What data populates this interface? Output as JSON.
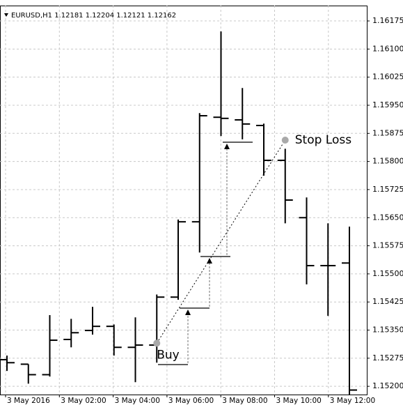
{
  "chart_data": {
    "type": "ohlc",
    "title": "EURUSD,H1  1.12181 1.12204 1.12121 1.12162",
    "open": [
      1.15271,
      1.15259,
      1.15231,
      1.15325,
      1.15349,
      1.1536,
      1.15304,
      1.1531,
      1.15438,
      1.15639,
      1.15918,
      1.15911,
      1.15896,
      1.15803,
      1.1565,
      1.15522,
      1.15529
    ],
    "high": [
      1.15282,
      1.15259,
      1.1539,
      1.1538,
      1.15412,
      1.15365,
      1.15384,
      1.15445,
      1.15645,
      1.15929,
      1.16147,
      1.15996,
      1.15901,
      1.15834,
      1.15704,
      1.15635,
      1.15626
    ],
    "low": [
      1.15241,
      1.15207,
      1.15226,
      1.15304,
      1.15338,
      1.15282,
      1.15211,
      1.15263,
      1.15431,
      1.15557,
      1.15868,
      1.15859,
      1.15762,
      1.15635,
      1.15472,
      1.15388,
      1.1515
    ],
    "close": [
      1.15263,
      1.15231,
      1.15323,
      1.15343,
      1.1536,
      1.15304,
      1.1531,
      1.15438,
      1.15639,
      1.15922,
      1.15915,
      1.159,
      1.15803,
      1.15697,
      1.15522,
      1.15522,
      1.1519
    ],
    "color": "#000000",
    "xtick_labels": [
      "3 May 2016",
      "3 May 02:00",
      "3 May 04:00",
      "3 May 06:00",
      "3 May 08:00",
      "3 May 10:00",
      "3 May 12:00"
    ],
    "ylim": [
      1.15178,
      1.16216
    ],
    "yticks": [
      1.16175,
      {
        "value": 1.161,
        "label": "1.16100"
      },
      1.16025,
      {
        "value": 1.1595,
        "label": "1.15950"
      },
      1.15875,
      {
        "value": 1.158,
        "label": "1.15800"
      },
      1.15725,
      {
        "value": 1.1565,
        "label": "1.15650"
      },
      1.15575,
      {
        "value": 1.155,
        "label": "1.15500"
      },
      1.15425,
      {
        "value": 1.1535,
        "label": "1.15350"
      },
      1.15275,
      {
        "value": 1.152,
        "label": "1.15200"
      }
    ],
    "grid": true,
    "annotations": [
      {
        "text": "Buy",
        "price": 1.15315,
        "at_bar": 7
      },
      {
        "text": "Stop Loss",
        "price": 1.15857,
        "at_bar": 13
      }
    ]
  }
}
